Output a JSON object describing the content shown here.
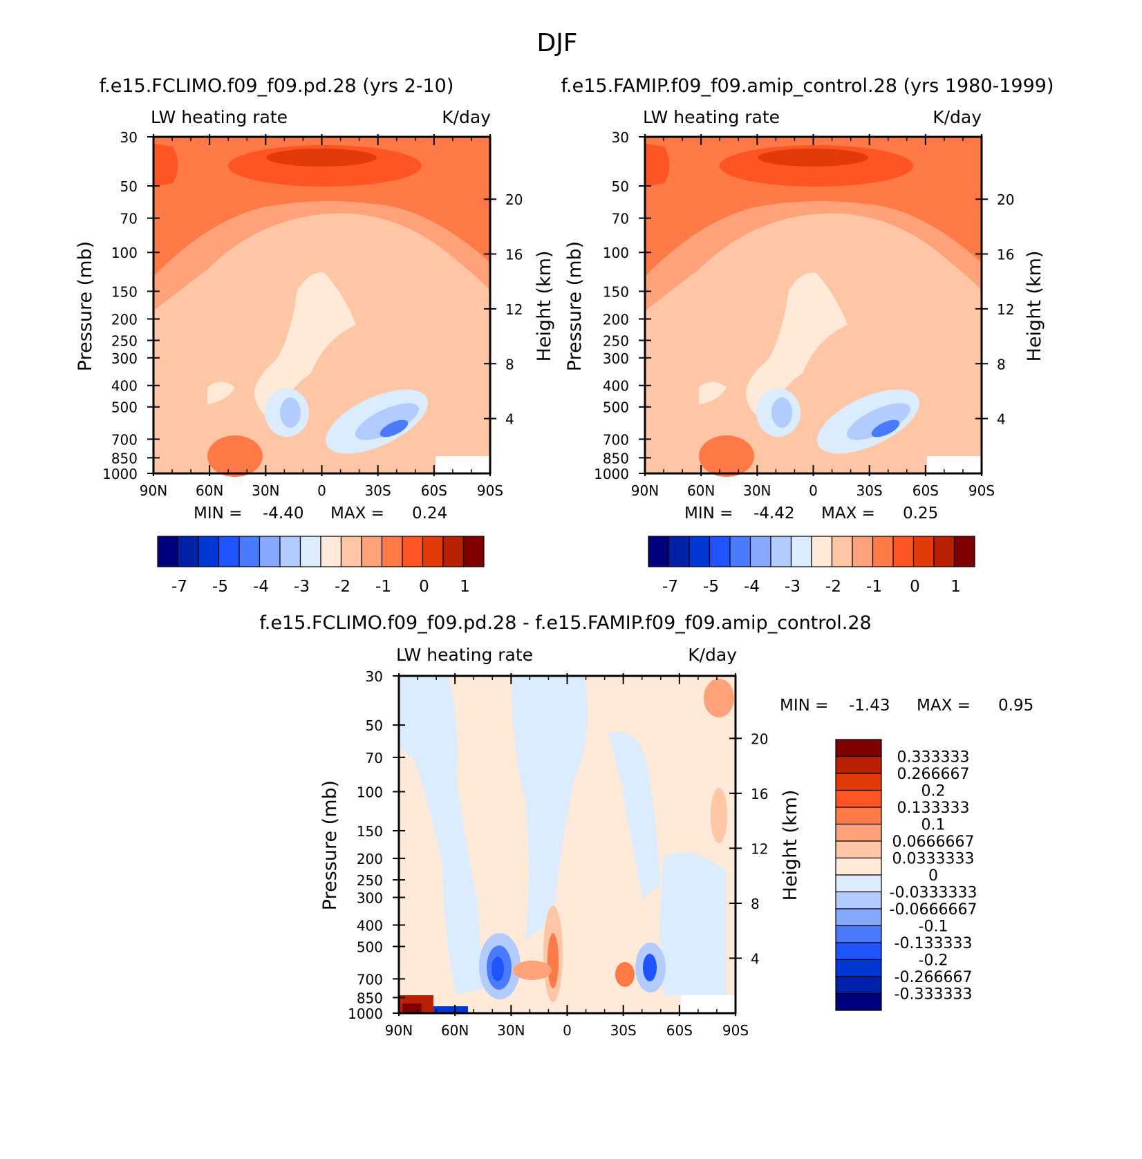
{
  "figure": {
    "title": "DJF"
  },
  "colors": {
    "main_scale": [
      "#00007f",
      "#0020a8",
      "#0038d6",
      "#1f54ff",
      "#4a7bff",
      "#86a8ff",
      "#b2ccff",
      "#dcecff",
      "#ffe9d8",
      "#ffc6a6",
      "#ffa27a",
      "#ff7a46",
      "#ff5522",
      "#e33a0a",
      "#b92105",
      "#7f0000"
    ],
    "diff_scale": [
      "#00007f",
      "#0020a8",
      "#0038d6",
      "#1f54ff",
      "#4a7bff",
      "#86a8ff",
      "#b2ccff",
      "#dcecff",
      "#ffe9d8",
      "#ffc6a6",
      "#ffa27a",
      "#ff7a46",
      "#ff5522",
      "#e33a0a",
      "#b92105",
      "#7f0000"
    ]
  },
  "chart_data": [
    {
      "type": "contour",
      "title": "f.e15.FCLIMO.f09_f09.pd.28 (yrs 2-10)",
      "left_subtitle": "LW heating rate",
      "right_subtitle": "K/day",
      "xlabel": "",
      "ylabel": "Pressure (mb)",
      "ylabel_right": "Height (km)",
      "x_ticks": [
        "90N",
        "60N",
        "30N",
        "0",
        "30S",
        "60S",
        "90S"
      ],
      "y_ticks": [
        30,
        50,
        70,
        100,
        150,
        200,
        250,
        300,
        400,
        500,
        700,
        850,
        1000
      ],
      "y_right_ticks": [
        20,
        16,
        12,
        8,
        4
      ],
      "ylim": [
        1000,
        30
      ],
      "y_scale": "log",
      "min_text": "MIN =",
      "min_value": "-4.40",
      "max_text": "MAX =",
      "max_value": "0.24",
      "colorbar_labels": [
        "-7",
        "-5",
        "-4",
        "-3",
        "-2",
        "-1",
        "0",
        "1"
      ]
    },
    {
      "type": "contour",
      "title": "f.e15.FAMIP.f09_f09.amip_control.28 (yrs 1980-1999)",
      "left_subtitle": "LW heating rate",
      "right_subtitle": "K/day",
      "xlabel": "",
      "ylabel": "Pressure (mb)",
      "ylabel_right": "Height (km)",
      "x_ticks": [
        "90N",
        "60N",
        "30N",
        "0",
        "30S",
        "60S",
        "90S"
      ],
      "y_ticks": [
        30,
        50,
        70,
        100,
        150,
        200,
        250,
        300,
        400,
        500,
        700,
        850,
        1000
      ],
      "y_right_ticks": [
        20,
        16,
        12,
        8,
        4
      ],
      "ylim": [
        1000,
        30
      ],
      "y_scale": "log",
      "min_text": "MIN =",
      "min_value": "-4.42",
      "max_text": "MAX =",
      "max_value": "0.25",
      "colorbar_labels": [
        "-7",
        "-5",
        "-4",
        "-3",
        "-2",
        "-1",
        "0",
        "1"
      ]
    },
    {
      "type": "contour",
      "title": "f.e15.FCLIMO.f09_f09.pd.28 - f.e15.FAMIP.f09_f09.amip_control.28",
      "left_subtitle": "LW heating rate",
      "right_subtitle": "K/day",
      "xlabel": "",
      "ylabel": "Pressure (mb)",
      "ylabel_right": "Height (km)",
      "x_ticks": [
        "90N",
        "60N",
        "30N",
        "0",
        "30S",
        "60S",
        "90S"
      ],
      "y_ticks": [
        30,
        50,
        70,
        100,
        150,
        200,
        250,
        300,
        400,
        500,
        700,
        850,
        1000
      ],
      "y_right_ticks": [
        20,
        16,
        12,
        8,
        4
      ],
      "ylim": [
        1000,
        30
      ],
      "y_scale": "log",
      "min_text": "MIN =",
      "min_value": "-1.43",
      "max_text": "MAX =",
      "max_value": "0.95",
      "colorbar_labels": [
        "0.333333",
        "0.266667",
        "0.2",
        "0.133333",
        "0.1",
        "0.0666667",
        "0.0333333",
        "0",
        "-0.0333333",
        "-0.0666667",
        "-0.1",
        "-0.133333",
        "-0.2",
        "-0.266667",
        "-0.333333"
      ]
    }
  ]
}
